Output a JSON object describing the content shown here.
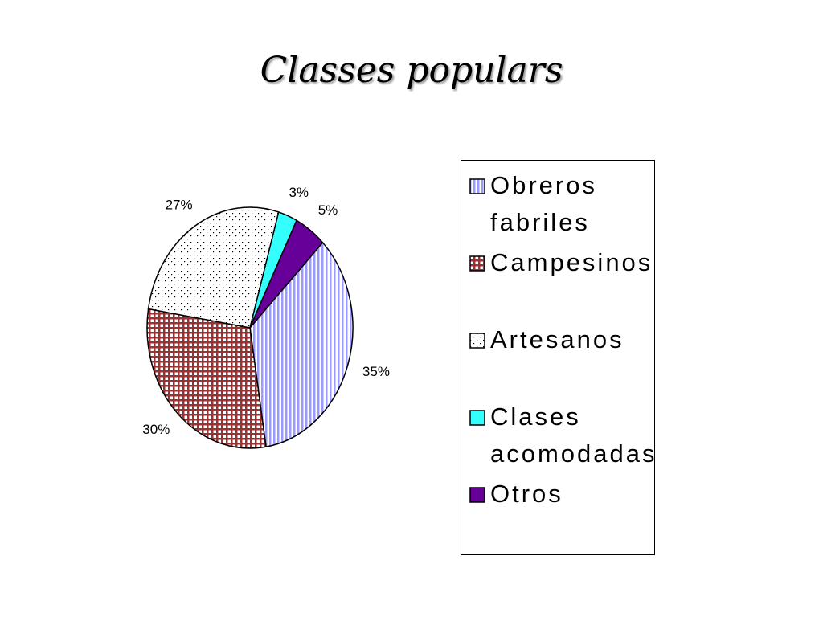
{
  "chart_data": {
    "type": "pie",
    "title": "Classes populars",
    "categories": [
      "Obreros fabriles",
      "Campesinos",
      "Artesanos",
      "Clases acomodadas",
      "Otros"
    ],
    "values": [
      35,
      30,
      27,
      3,
      5
    ],
    "value_labels": [
      "35%",
      "30%",
      "27%",
      "3%",
      "5%"
    ],
    "colors": [
      "#9999ff",
      "#993333",
      "#000000",
      "#33ffff",
      "#660099"
    ],
    "patterns": [
      "vertical-stripes",
      "grid",
      "dots",
      "solid",
      "solid"
    ],
    "legend": "right"
  }
}
